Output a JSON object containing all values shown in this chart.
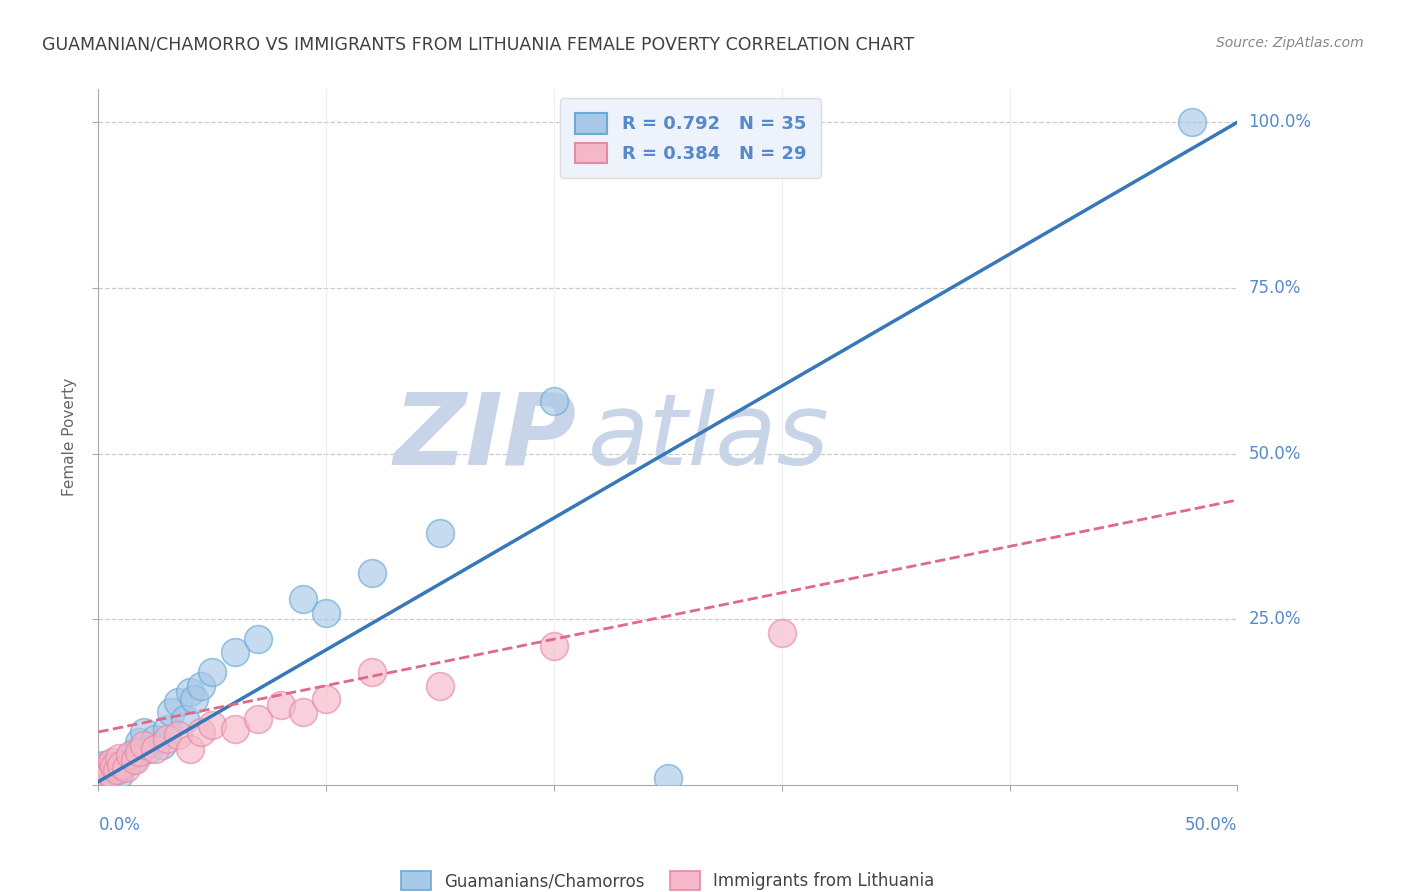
{
  "title": "GUAMANIAN/CHAMORRO VS IMMIGRANTS FROM LITHUANIA FEMALE POVERTY CORRELATION CHART",
  "source": "Source: ZipAtlas.com",
  "ylabel": "Female Poverty",
  "blue_R": 0.792,
  "blue_N": 35,
  "pink_R": 0.384,
  "pink_N": 29,
  "blue_color": "#a8c8e8",
  "blue_edge": "#6aaad4",
  "pink_color": "#f4b8c8",
  "pink_edge": "#e888a8",
  "blue_scatter": [
    [
      0.002,
      0.03
    ],
    [
      0.003,
      0.025
    ],
    [
      0.004,
      0.015
    ],
    [
      0.005,
      0.02
    ],
    [
      0.006,
      0.018
    ],
    [
      0.007,
      0.022
    ],
    [
      0.008,
      0.028
    ],
    [
      0.009,
      0.015
    ],
    [
      0.01,
      0.025
    ],
    [
      0.012,
      0.035
    ],
    [
      0.013,
      0.04
    ],
    [
      0.015,
      0.038
    ],
    [
      0.016,
      0.05
    ],
    [
      0.018,
      0.065
    ],
    [
      0.02,
      0.08
    ],
    [
      0.022,
      0.055
    ],
    [
      0.025,
      0.07
    ],
    [
      0.028,
      0.06
    ],
    [
      0.03,
      0.085
    ],
    [
      0.032,
      0.11
    ],
    [
      0.035,
      0.125
    ],
    [
      0.038,
      0.1
    ],
    [
      0.04,
      0.14
    ],
    [
      0.042,
      0.13
    ],
    [
      0.045,
      0.15
    ],
    [
      0.05,
      0.17
    ],
    [
      0.06,
      0.2
    ],
    [
      0.07,
      0.22
    ],
    [
      0.09,
      0.28
    ],
    [
      0.1,
      0.26
    ],
    [
      0.12,
      0.32
    ],
    [
      0.15,
      0.38
    ],
    [
      0.2,
      0.58
    ],
    [
      0.25,
      0.01
    ],
    [
      0.48,
      1.0
    ]
  ],
  "pink_scatter": [
    [
      0.002,
      0.025
    ],
    [
      0.003,
      0.02
    ],
    [
      0.004,
      0.03
    ],
    [
      0.005,
      0.018
    ],
    [
      0.006,
      0.035
    ],
    [
      0.007,
      0.028
    ],
    [
      0.008,
      0.022
    ],
    [
      0.009,
      0.04
    ],
    [
      0.01,
      0.03
    ],
    [
      0.012,
      0.025
    ],
    [
      0.014,
      0.045
    ],
    [
      0.016,
      0.038
    ],
    [
      0.018,
      0.05
    ],
    [
      0.02,
      0.06
    ],
    [
      0.025,
      0.055
    ],
    [
      0.03,
      0.07
    ],
    [
      0.035,
      0.075
    ],
    [
      0.04,
      0.055
    ],
    [
      0.045,
      0.08
    ],
    [
      0.05,
      0.09
    ],
    [
      0.06,
      0.085
    ],
    [
      0.07,
      0.1
    ],
    [
      0.08,
      0.12
    ],
    [
      0.09,
      0.11
    ],
    [
      0.1,
      0.13
    ],
    [
      0.12,
      0.17
    ],
    [
      0.15,
      0.15
    ],
    [
      0.2,
      0.21
    ],
    [
      0.3,
      0.23
    ]
  ],
  "blue_trend_x": [
    0.0,
    0.5
  ],
  "blue_trend_y": [
    0.005,
    1.0
  ],
  "pink_trend_x": [
    0.0,
    0.5
  ],
  "pink_trend_y": [
    0.08,
    0.43
  ],
  "xlim": [
    0.0,
    0.5
  ],
  "ylim": [
    0.0,
    1.05
  ],
  "watermark_zip": "ZIP",
  "watermark_atlas": "atlas",
  "watermark_color": "#c8d4e8",
  "legend_box_color": "#eef2fa",
  "title_color": "#404040",
  "axis_label_color": "#5588cc",
  "grid_color": "#cccccc",
  "source_color": "#888888"
}
